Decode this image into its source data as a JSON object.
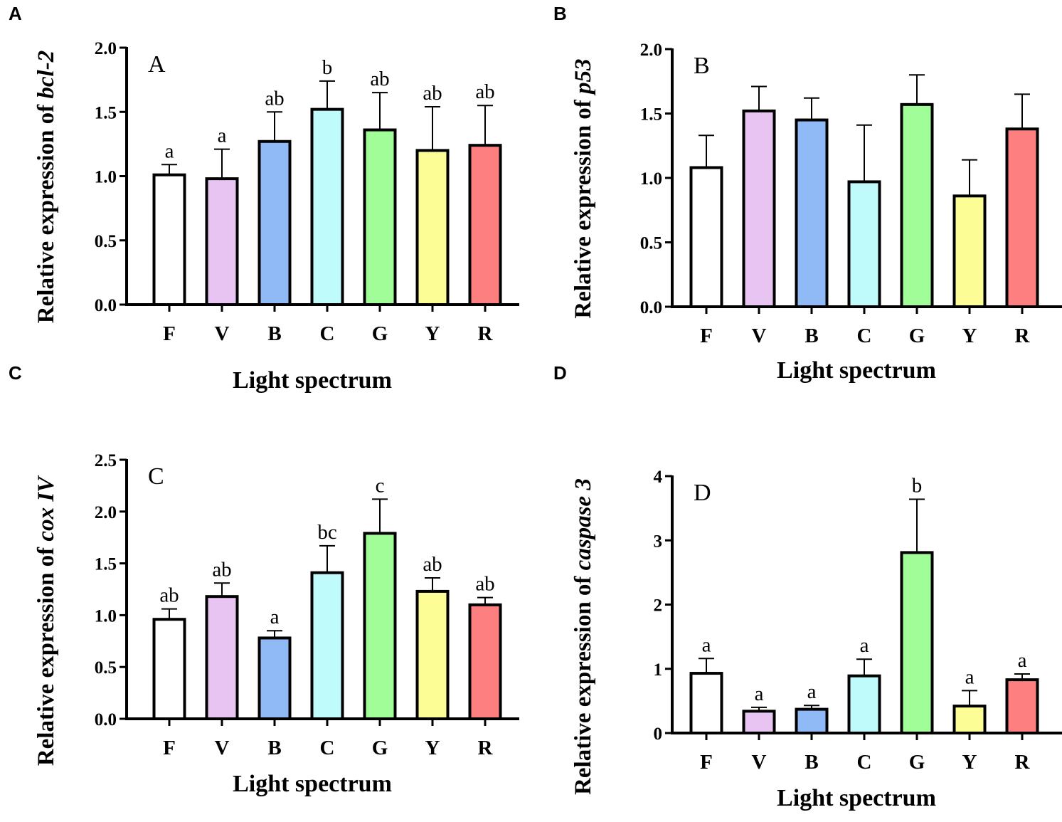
{
  "chart_data": [
    {
      "type": "bar",
      "panel": "A",
      "inner_label": "A",
      "ylabel_prefix": "Relative expression of ",
      "ylabel_gene": "bcl-2",
      "xlabel": "Light spectrum",
      "categories": [
        "F",
        "V",
        "B",
        "C",
        "G",
        "Y",
        "R"
      ],
      "values": [
        1.01,
        0.98,
        1.27,
        1.52,
        1.36,
        1.2,
        1.24
      ],
      "error_upper": [
        1.09,
        1.21,
        1.5,
        1.74,
        1.65,
        1.54,
        1.55
      ],
      "significance": [
        "a",
        "a",
        "ab",
        "b",
        "ab",
        "ab",
        "ab"
      ],
      "ylim": [
        0,
        2.0
      ],
      "yticks": [
        "0.0",
        "0.5",
        "1.0",
        "1.5",
        "2.0"
      ]
    },
    {
      "type": "bar",
      "panel": "B",
      "inner_label": "B",
      "ylabel_prefix": "Relative expression of ",
      "ylabel_gene": "p53",
      "xlabel": "Light spectrum",
      "categories": [
        "F",
        "V",
        "B",
        "C",
        "G",
        "Y",
        "R"
      ],
      "values": [
        1.08,
        1.52,
        1.45,
        0.97,
        1.57,
        0.86,
        1.38
      ],
      "error_upper": [
        1.33,
        1.71,
        1.62,
        1.41,
        1.8,
        1.14,
        1.65
      ],
      "significance": [
        "",
        "",
        "",
        "",
        "",
        "",
        ""
      ],
      "ylim": [
        0,
        2.0
      ],
      "yticks": [
        "0.0",
        "0.5",
        "1.0",
        "1.5",
        "2.0"
      ]
    },
    {
      "type": "bar",
      "panel": "C",
      "inner_label": "C",
      "ylabel_prefix": "Relative expression of ",
      "ylabel_gene": "cox IV",
      "xlabel": "Light spectrum",
      "categories": [
        "F",
        "V",
        "B",
        "C",
        "G",
        "Y",
        "R"
      ],
      "values": [
        0.96,
        1.18,
        0.78,
        1.41,
        1.79,
        1.23,
        1.1
      ],
      "error_upper": [
        1.06,
        1.31,
        0.85,
        1.67,
        2.12,
        1.36,
        1.17
      ],
      "significance": [
        "ab",
        "ab",
        "a",
        "bc",
        "c",
        "ab",
        "ab"
      ],
      "ylim": [
        0,
        2.5
      ],
      "yticks": [
        "0.0",
        "0.5",
        "1.0",
        "1.5",
        "2.0",
        "2.5"
      ]
    },
    {
      "type": "bar",
      "panel": "D",
      "inner_label": "D",
      "ylabel_prefix": "Relative expression of ",
      "ylabel_gene": "caspase 3",
      "xlabel": "Light spectrum",
      "categories": [
        "F",
        "V",
        "B",
        "C",
        "G",
        "Y",
        "R"
      ],
      "values": [
        0.93,
        0.34,
        0.37,
        0.89,
        2.81,
        0.42,
        0.83
      ],
      "error_upper": [
        1.16,
        0.4,
        0.43,
        1.15,
        3.64,
        0.66,
        0.92
      ],
      "significance": [
        "a",
        "a",
        "a",
        "a",
        "b",
        "a",
        "a"
      ],
      "ylim": [
        0,
        4
      ],
      "yticks": [
        "0",
        "1",
        "2",
        "3",
        "4"
      ]
    }
  ],
  "bar_colors": [
    "#ffffff",
    "#e8c4f2",
    "#8fbaf5",
    "#c0fbfb",
    "#a0fd98",
    "#fdfd96",
    "#fd7f7f"
  ]
}
